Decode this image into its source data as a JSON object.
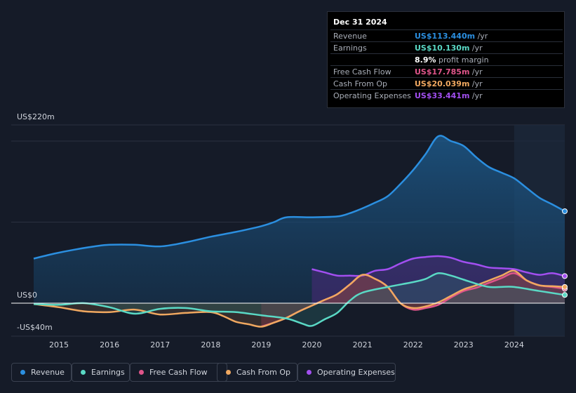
{
  "tooltip": {
    "date": "Dec 31 2024",
    "rows": [
      {
        "label": "Revenue",
        "value": "US$113.440m",
        "unit": "/yr",
        "color": "#2b8fe0"
      },
      {
        "label": "Earnings",
        "value": "US$10.130m",
        "unit": "/yr",
        "color": "#5ad9c5"
      },
      {
        "label": "",
        "value": "8.9%",
        "unit": "profit margin",
        "color": "#ffffff"
      },
      {
        "label": "Free Cash Flow",
        "value": "US$17.785m",
        "unit": "/yr",
        "color": "#e0558a"
      },
      {
        "label": "Cash From Op",
        "value": "US$20.039m",
        "unit": "/yr",
        "color": "#f0a860"
      },
      {
        "label": "Operating Expenses",
        "value": "US$33.441m",
        "unit": "/yr",
        "color": "#a24ff0"
      }
    ]
  },
  "legend": [
    {
      "label": "Revenue",
      "color": "#2b8fe0"
    },
    {
      "label": "Earnings",
      "color": "#5ad9c5"
    },
    {
      "label": "Free Cash Flow",
      "color": "#e0558a"
    },
    {
      "label": "Cash From Op",
      "color": "#f0a860"
    },
    {
      "label": "Operating Expenses",
      "color": "#a24ff0"
    }
  ],
  "chart_data": {
    "type": "area",
    "title": "",
    "ylabel_top": "US$220m",
    "ylabel_zero": "US$0",
    "ylabel_bottom": "-US$40m",
    "ylim": [
      -40,
      220
    ],
    "xlim": [
      2014.5,
      2025.0
    ],
    "x_ticks": [
      "2015",
      "2016",
      "2017",
      "2018",
      "2019",
      "2020",
      "2021",
      "2022",
      "2023",
      "2024"
    ],
    "x_tick_values": [
      2015,
      2016,
      2017,
      2018,
      2019,
      2020,
      2021,
      2022,
      2023,
      2024
    ],
    "highlight_from": 2024.0,
    "series": [
      {
        "name": "Revenue",
        "color": "#2b8fe0",
        "x": [
          2014.5,
          2014.9,
          2015.3,
          2015.7,
          2016.0,
          2016.5,
          2017.0,
          2017.5,
          2018.0,
          2018.5,
          2019.0,
          2019.25,
          2019.5,
          2020.0,
          2020.5,
          2020.75,
          2021.0,
          2021.25,
          2021.5,
          2021.75,
          2022.0,
          2022.25,
          2022.5,
          2022.75,
          2023.0,
          2023.25,
          2023.5,
          2023.75,
          2024.0,
          2024.25,
          2024.5,
          2024.75,
          2025.0
        ],
        "values": [
          55,
          61,
          66,
          70,
          72,
          72,
          70,
          75,
          82,
          88,
          95,
          100,
          106,
          106,
          107,
          111,
          117,
          124,
          132,
          147,
          164,
          184,
          206,
          200,
          194,
          180,
          168,
          161,
          154,
          142,
          130,
          122,
          113.44
        ]
      },
      {
        "name": "Earnings",
        "color": "#5ad9c5",
        "x": [
          2014.5,
          2015.0,
          2015.5,
          2016.0,
          2016.5,
          2017.0,
          2017.5,
          2018.0,
          2018.5,
          2019.0,
          2019.5,
          2019.8,
          2020.0,
          2020.25,
          2020.5,
          2020.75,
          2021.0,
          2021.5,
          2022.0,
          2022.25,
          2022.5,
          2022.75,
          2023.0,
          2023.25,
          2023.5,
          2023.75,
          2024.0,
          2024.5,
          2025.0
        ],
        "values": [
          -1,
          -2,
          0,
          -5,
          -13,
          -7,
          -6,
          -10,
          -11,
          -15,
          -19,
          -25,
          -28,
          -20,
          -12,
          3,
          13,
          20,
          26,
          30,
          37,
          34,
          29,
          24,
          20,
          20,
          20,
          15,
          10.13
        ]
      },
      {
        "name": "Free Cash Flow",
        "color": "#e0558a",
        "x": [
          2019.0,
          2019.25,
          2019.5,
          2019.75,
          2020.0,
          2020.25,
          2020.5,
          2020.75,
          2021.0,
          2021.25,
          2021.5,
          2021.75,
          2022.0,
          2022.25,
          2022.5,
          2022.75,
          2023.0,
          2023.25,
          2023.5,
          2023.75,
          2024.0,
          2024.25,
          2024.5,
          2024.75,
          2025.0
        ],
        "values": [
          -29,
          -24,
          -18,
          -10,
          -3,
          4,
          11,
          23,
          35,
          30,
          20,
          0,
          -8,
          -6,
          -2,
          7,
          15,
          19,
          25,
          31,
          37,
          28,
          22,
          20,
          17.785
        ]
      },
      {
        "name": "Cash From Op",
        "color": "#f0a860",
        "x": [
          2014.5,
          2015.0,
          2015.5,
          2016.0,
          2016.5,
          2017.0,
          2017.5,
          2018.0,
          2018.25,
          2018.5,
          2018.75,
          2019.0,
          2019.25,
          2019.5,
          2019.75,
          2020.0,
          2020.25,
          2020.5,
          2020.75,
          2021.0,
          2021.25,
          2021.5,
          2021.75,
          2022.0,
          2022.25,
          2022.5,
          2022.75,
          2023.0,
          2023.25,
          2023.5,
          2023.75,
          2024.0,
          2024.25,
          2024.5,
          2024.75,
          2025.0
        ],
        "values": [
          -1,
          -5,
          -10,
          -11,
          -8,
          -14,
          -12,
          -11,
          -16,
          -23,
          -26,
          -29,
          -24,
          -18,
          -10,
          -3,
          4,
          11,
          23,
          35,
          30,
          20,
          0,
          -6,
          -4,
          1,
          9,
          17,
          22,
          28,
          34,
          40,
          28,
          22,
          21,
          20.039
        ]
      },
      {
        "name": "Operating Expenses",
        "color": "#a24ff0",
        "x": [
          2020.0,
          2020.25,
          2020.5,
          2020.75,
          2021.0,
          2021.25,
          2021.5,
          2021.75,
          2022.0,
          2022.25,
          2022.5,
          2022.75,
          2023.0,
          2023.25,
          2023.5,
          2023.75,
          2024.0,
          2024.25,
          2024.5,
          2024.75,
          2025.0
        ],
        "values": [
          42,
          38,
          34,
          34,
          34,
          40,
          42,
          49,
          55,
          57,
          58,
          56,
          51,
          48,
          44,
          43,
          42,
          38,
          35,
          37,
          33.441
        ]
      }
    ]
  }
}
